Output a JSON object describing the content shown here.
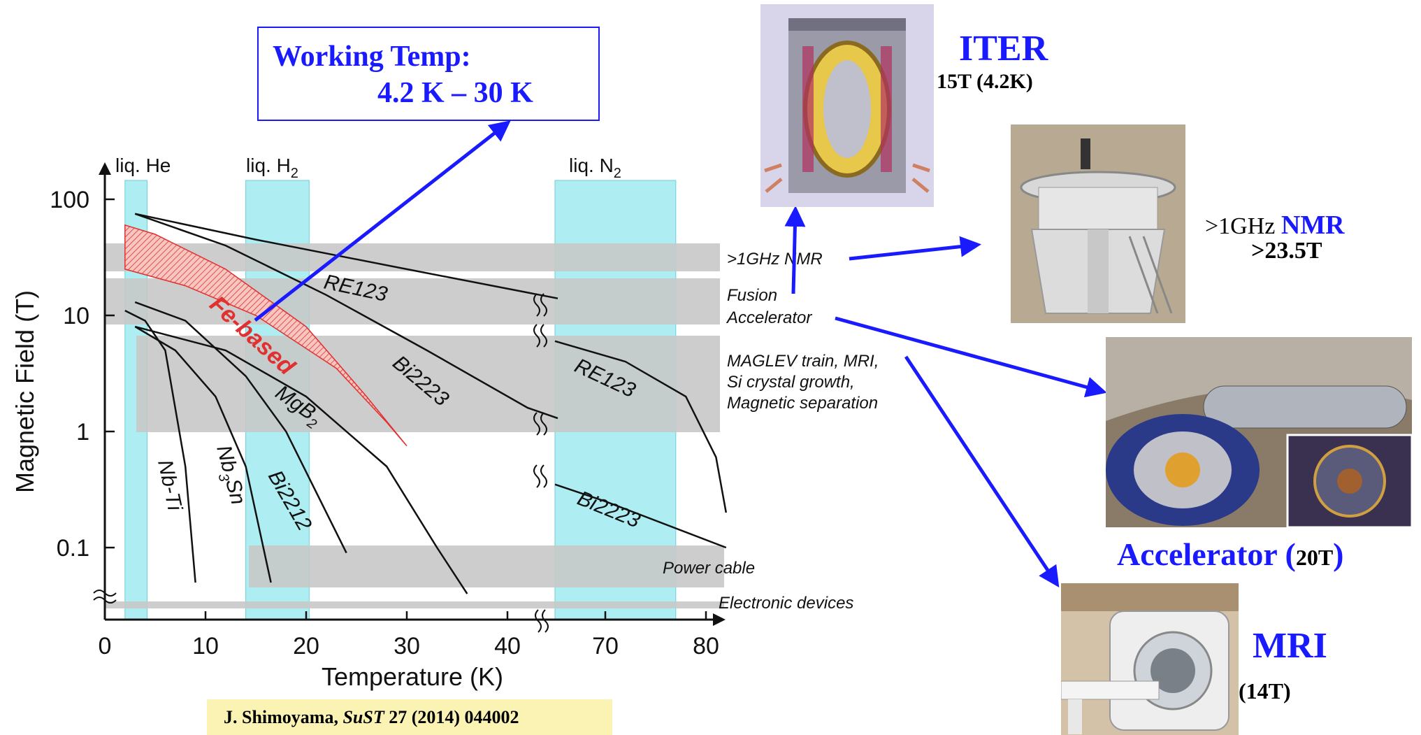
{
  "callout": {
    "line1": "Working Temp:",
    "line2": "4.2 K – 30 K"
  },
  "citation": {
    "author": "J. Shimoyama, ",
    "journal": "SuST",
    "rest": "  27 (2014) 044002"
  },
  "colors": {
    "accent_blue": "#1a1aff",
    "band_cyan": "#aeeef2",
    "app_gray": "#c8c8c8",
    "febased_red": "#e03030",
    "citation_bg": "#fbf3b4"
  },
  "applications": {
    "iter": {
      "name": "ITER",
      "spec": "15T (4.2K)"
    },
    "nmr": {
      "prefix": ">1GHz ",
      "name": "NMR",
      "spec": ">23.5T"
    },
    "accelerator": {
      "name": "Accelerator (",
      "spec": "20T",
      "close": ")"
    },
    "mri": {
      "name": "MRI",
      "spec": "(14T)"
    }
  },
  "chart_data": {
    "type": "line",
    "xlabel": "Temperature (K)",
    "ylabel": "Magnetic Field (T)",
    "y_scale": "log",
    "x_axis_break": "between 45 K and 65 K",
    "x_ticks": [
      "0",
      "10",
      "20",
      "30",
      "40",
      "70",
      "80"
    ],
    "y_ticks": [
      "100",
      "10",
      "1",
      "0.1"
    ],
    "coolant_bands": [
      {
        "label": "liq. He",
        "sub": "",
        "range": [
          2,
          4.2
        ]
      },
      {
        "label": "liq. H",
        "sub": "2",
        "range": [
          14,
          20.3
        ]
      },
      {
        "label": "liq. N",
        "sub": "2",
        "range": [
          65,
          77
        ]
      }
    ],
    "application_bands": [
      {
        "label": "1",
        "text": ">1GHz NMR",
        "range": [
          23.5,
          40
        ]
      },
      {
        "label": "2a",
        "text": "Fusion",
        "range": [
          7,
          20
        ]
      },
      {
        "label": "2b",
        "text": "Accelerator",
        "range": [
          7,
          20
        ]
      },
      {
        "label": "3a",
        "text": "MAGLEV train, MRI,",
        "range": [
          1,
          6
        ]
      },
      {
        "label": "3b",
        "text": "Si crystal growth,",
        "range": [
          1,
          6
        ]
      },
      {
        "label": "3c",
        "text": "Magnetic separation",
        "range": [
          1,
          6
        ]
      },
      {
        "label": "4",
        "text": "Power cable",
        "range": [
          0.05,
          0.1
        ]
      },
      {
        "label": "5",
        "text": "Electronic devices",
        "range": [
          0.03,
          0.03
        ]
      }
    ],
    "series": [
      {
        "name": "Nb-Ti",
        "points": [
          [
            2,
            11
          ],
          [
            4,
            9
          ],
          [
            6,
            5
          ],
          [
            8,
            0.5
          ],
          [
            9,
            0.05
          ]
        ]
      },
      {
        "name": "Nb3Sn",
        "label_main": "Nb",
        "label_sub": "3",
        "label_tail": "Sn",
        "points": [
          [
            3,
            8
          ],
          [
            7,
            5
          ],
          [
            11,
            2
          ],
          [
            14,
            0.5
          ],
          [
            16.5,
            0.05
          ]
        ]
      },
      {
        "name": "Bi2212",
        "points": [
          [
            3,
            13
          ],
          [
            8,
            9
          ],
          [
            14,
            3
          ],
          [
            18,
            1
          ],
          [
            21,
            0.3
          ],
          [
            24,
            0.09
          ]
        ]
      },
      {
        "name": "MgB2",
        "label_main": "MgB",
        "label_sub": "2",
        "label_tail": "",
        "points": [
          [
            3,
            8
          ],
          [
            12,
            5
          ],
          [
            20,
            2
          ],
          [
            28,
            0.5
          ],
          [
            33,
            0.1
          ],
          [
            36,
            0.04
          ]
        ]
      },
      {
        "name": "Fe-based (upper)",
        "points": [
          [
            2,
            60
          ],
          [
            5,
            50
          ],
          [
            12,
            25
          ],
          [
            20,
            8
          ],
          [
            26,
            2
          ],
          [
            30,
            0.75
          ]
        ]
      },
      {
        "name": "Fe-based (lower)",
        "points": [
          [
            2,
            25
          ],
          [
            8,
            18
          ],
          [
            15,
            10
          ],
          [
            23,
            3.5
          ],
          [
            28,
            1.2
          ],
          [
            30,
            0.75
          ]
        ]
      },
      {
        "name": "Bi2223",
        "points": [
          [
            3,
            75
          ],
          [
            12,
            40
          ],
          [
            22,
            15
          ],
          [
            32,
            5
          ],
          [
            42,
            1.6
          ],
          [
            45,
            1.3
          ],
          [
            65,
            0.35
          ],
          [
            70,
            0.25
          ],
          [
            82,
            0.1
          ]
        ]
      },
      {
        "name": "RE123",
        "points": [
          [
            3,
            75
          ],
          [
            15,
            45
          ],
          [
            30,
            25
          ],
          [
            45,
            14
          ],
          [
            65,
            6
          ],
          [
            72,
            4
          ],
          [
            78,
            2
          ],
          [
            81,
            0.6
          ],
          [
            82,
            0.2
          ]
        ]
      }
    ],
    "series_labels": [
      "RE123",
      "Fe-based",
      "Bi2223",
      "MgB",
      "2",
      "Nb-Ti",
      "Nb",
      "3",
      "Sn",
      "Bi2212",
      "RE123",
      "Bi2223"
    ]
  }
}
